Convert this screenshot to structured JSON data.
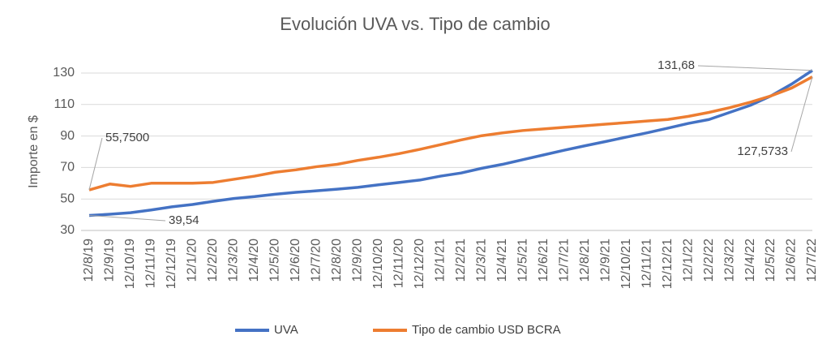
{
  "chart_data": {
    "type": "line",
    "title": "Evolución UVA vs. Tipo de cambio",
    "y_label": "Importe en $",
    "categories": [
      "12/8/19",
      "12/9/19",
      "12/10/19",
      "12/11/19",
      "12/12/19",
      "12/1/20",
      "12/2/20",
      "12/3/20",
      "12/4/20",
      "12/5/20",
      "12/6/20",
      "12/7/20",
      "12/8/20",
      "12/9/20",
      "12/10/20",
      "12/11/20",
      "12/12/20",
      "12/1/21",
      "12/2/21",
      "12/3/21",
      "12/4/21",
      "12/5/21",
      "12/6/21",
      "12/7/21",
      "12/8/21",
      "12/9/21",
      "12/10/21",
      "12/11/21",
      "12/12/21",
      "12/1/22",
      "12/2/22",
      "12/3/22",
      "12/4/22",
      "12/5/22",
      "12/6/22",
      "12/7/22"
    ],
    "series": [
      {
        "name": "UVA",
        "color": "#4472c4",
        "values": [
          39.54,
          40.3,
          41.3,
          43,
          45,
          46.5,
          48.5,
          50.3,
          51.5,
          53,
          54.2,
          55.2,
          56.2,
          57.4,
          59,
          60.5,
          62,
          64.5,
          66.5,
          69.5,
          72,
          75,
          78,
          81,
          83.8,
          86.5,
          89.3,
          92,
          95,
          98,
          100.5,
          105,
          109.5,
          115.5,
          123,
          131.68
        ],
        "value_labels": [
          "39,54",
          null,
          null,
          null,
          null,
          null,
          null,
          null,
          null,
          null,
          null,
          null,
          null,
          null,
          null,
          null,
          null,
          null,
          null,
          null,
          null,
          null,
          null,
          null,
          null,
          null,
          null,
          null,
          null,
          null,
          null,
          null,
          null,
          null,
          null,
          "131,68"
        ]
      },
      {
        "name": "Tipo de cambio USD BCRA",
        "color": "#ed7d31",
        "values": [
          55.75,
          59.5,
          58,
          60,
          60,
          60,
          60.5,
          62.5,
          64.5,
          67,
          68.5,
          70.5,
          72,
          74.5,
          76.5,
          78.8,
          81.5,
          84.5,
          87.5,
          90.2,
          92,
          93.5,
          94.5,
          95.5,
          96.5,
          97.5,
          98.5,
          99.5,
          100.5,
          102.5,
          105,
          108,
          111.5,
          115.5,
          120.5,
          127.5733
        ],
        "value_labels": [
          "55,7500",
          null,
          null,
          null,
          null,
          null,
          null,
          null,
          null,
          null,
          null,
          null,
          null,
          null,
          null,
          null,
          null,
          null,
          null,
          null,
          null,
          null,
          null,
          null,
          null,
          null,
          null,
          null,
          null,
          null,
          null,
          null,
          null,
          null,
          null,
          "127,5733"
        ]
      }
    ],
    "ylim": [
      30,
      130
    ],
    "yticks": [
      30,
      50,
      70,
      90,
      110,
      130
    ],
    "grid": true,
    "legend": "bottom"
  }
}
